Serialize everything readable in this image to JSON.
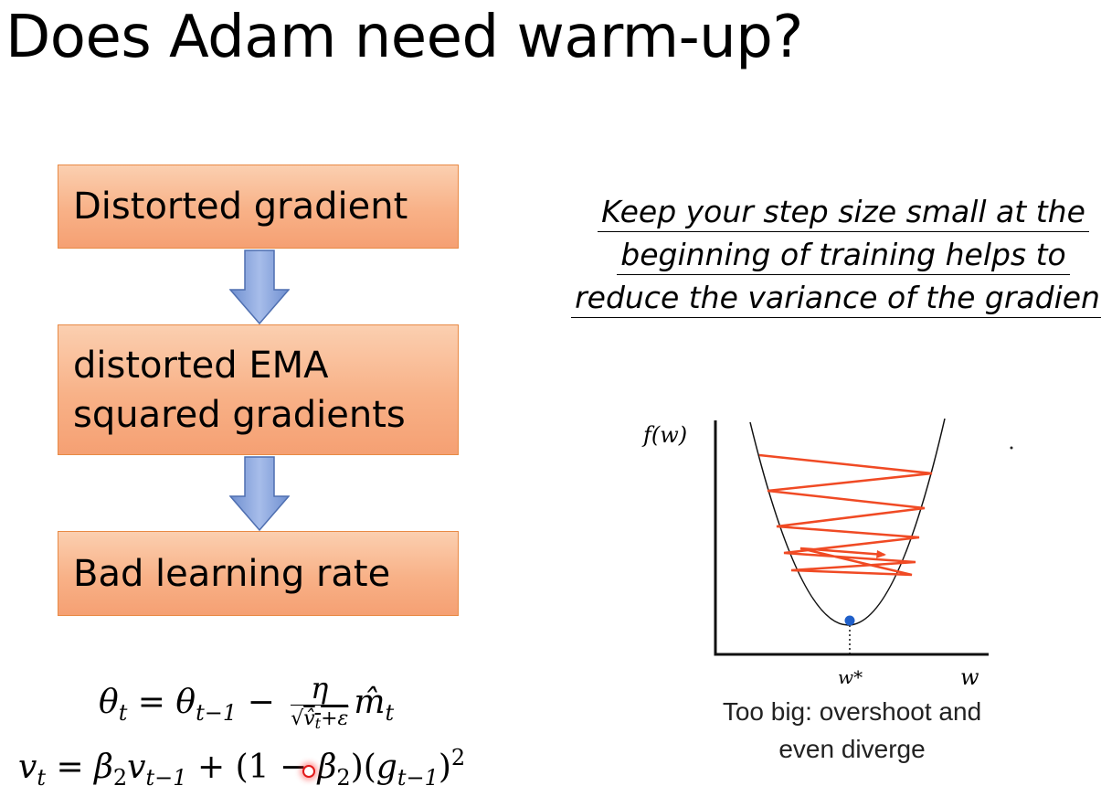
{
  "slide": {
    "title": "Does Adam need warm-up?"
  },
  "flow": {
    "box1": "Distorted gradient",
    "box2_line1": "distorted EMA",
    "box2_line2": "squared gradients",
    "box3": "Bad learning rate"
  },
  "quote": {
    "line1": "Keep your step size small at the",
    "line2": "beginning of training helps to",
    "line3": "reduce the variance of the gradient"
  },
  "figure": {
    "ylabel": "f(w)",
    "optimum_label": "w*",
    "xlabel": "w",
    "caption_line1": "Too big: overshoot and",
    "caption_line2": "even diverge",
    "colors": {
      "curve": "#111111",
      "zigzag": "#f04a24",
      "optimum": "#1f5fc9"
    }
  },
  "equations": {
    "eq1": "θt = θt−1 − η / √(v̂t+ε) m̂t",
    "eq2": "vt = β2 vt−1 + (1 − β2)(gt−1)^2"
  },
  "colors": {
    "box_fill": "#f8b187",
    "box_border": "#e88a45",
    "arrow_fill": "#7f9fdc",
    "arrow_border": "#4f6fb0"
  }
}
